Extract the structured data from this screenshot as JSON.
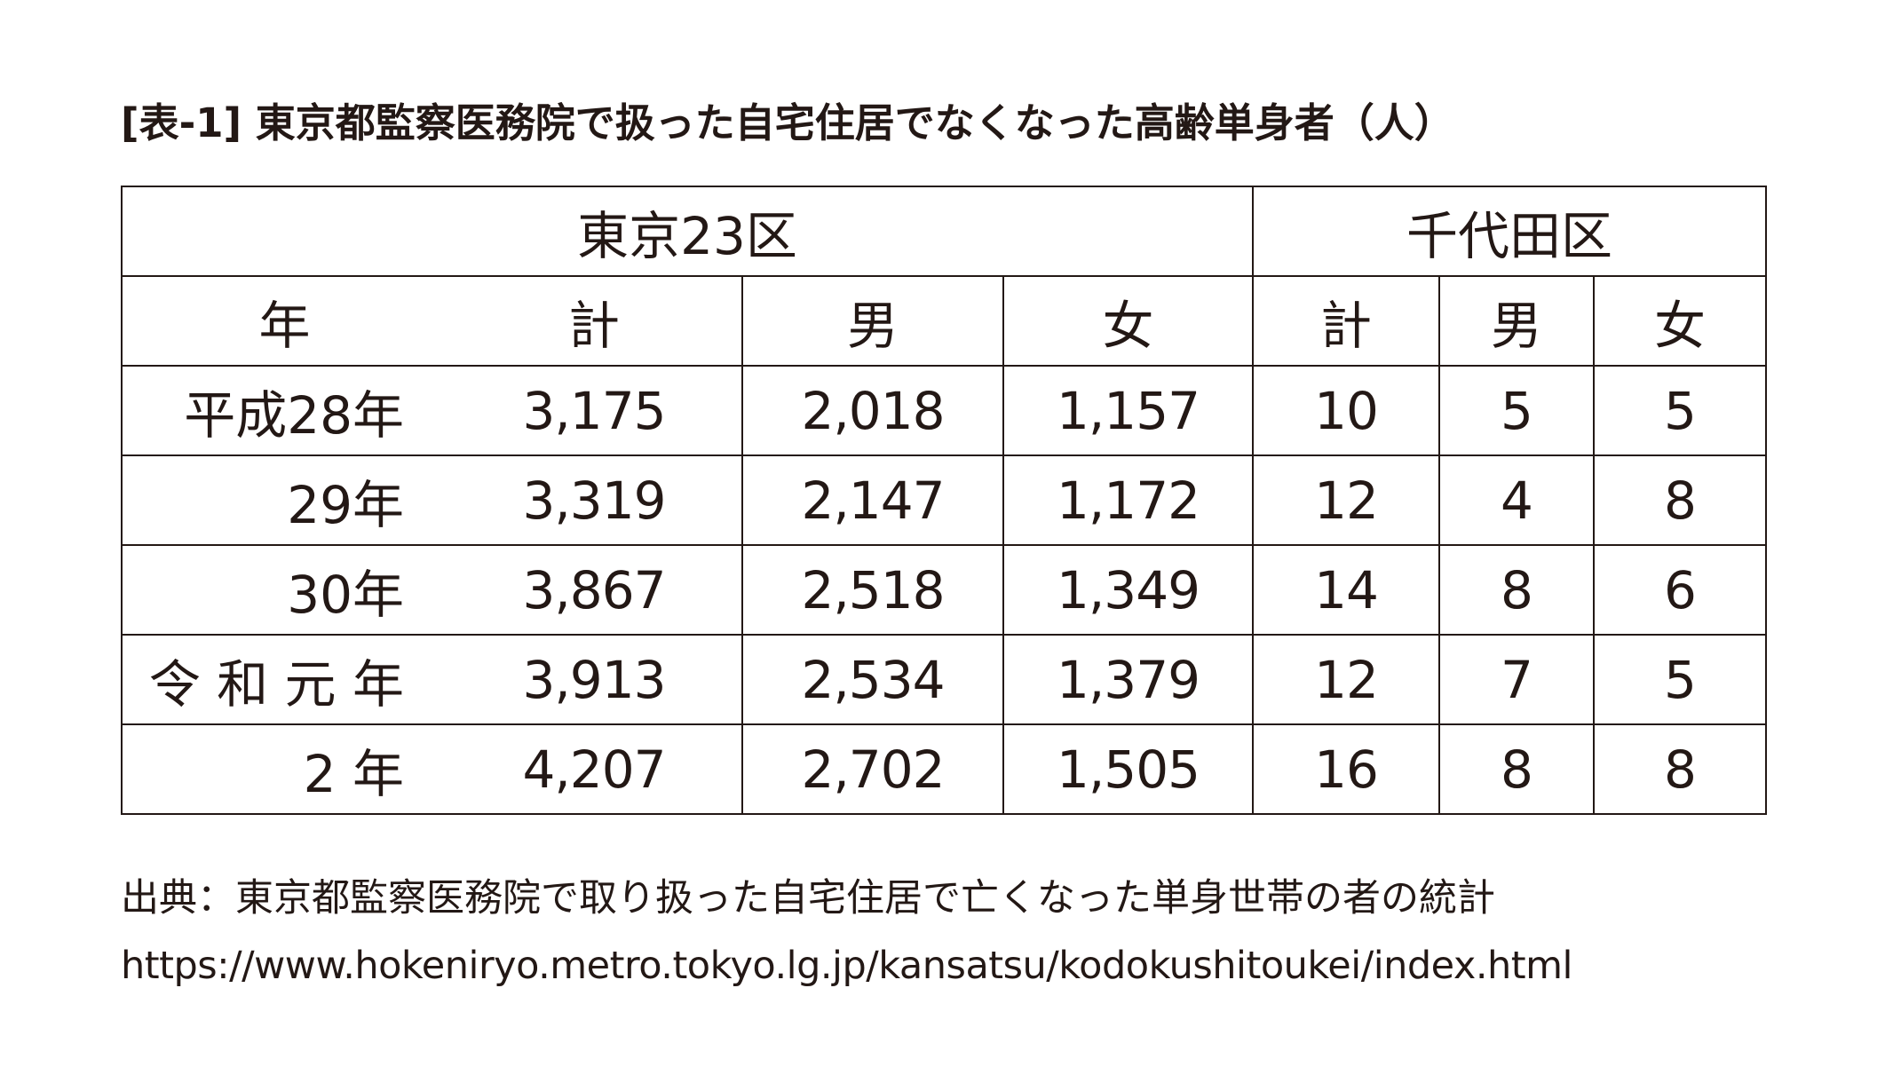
{
  "chart_data": {
    "type": "table",
    "title": "[表-1] 東京都監察医務院で扱った自宅住居でなくなった高齢単身者（人）",
    "group_headers": [
      "東京23区",
      "千代田区"
    ],
    "sub_headers": [
      "年",
      "計",
      "男",
      "女",
      "計",
      "男",
      "女"
    ],
    "rows": [
      {
        "year": "平成28年",
        "cells": [
          "3,175",
          "2,018",
          "1,157",
          "10",
          "5",
          "5"
        ]
      },
      {
        "year": "29年",
        "cells": [
          "3,319",
          "2,147",
          "1,172",
          "12",
          "4",
          "8"
        ]
      },
      {
        "year": "30年",
        "cells": [
          "3,867",
          "2,518",
          "1,349",
          "14",
          "8",
          "6"
        ]
      },
      {
        "year": "令 和 元 年",
        "cells": [
          "3,913",
          "2,534",
          "1,379",
          "12",
          "7",
          "5"
        ]
      },
      {
        "year": "2 年",
        "cells": [
          "4,207",
          "2,702",
          "1,505",
          "16",
          "8",
          "8"
        ]
      }
    ]
  },
  "source": {
    "line1": "出典：東京都監察医務院で取り扱った自宅住居で亡くなった単身世帯の者の統計",
    "line2": "https://www.hokeniryo.metro.tokyo.lg.jp/kansatsu/kodokushitoukei/index.html"
  }
}
